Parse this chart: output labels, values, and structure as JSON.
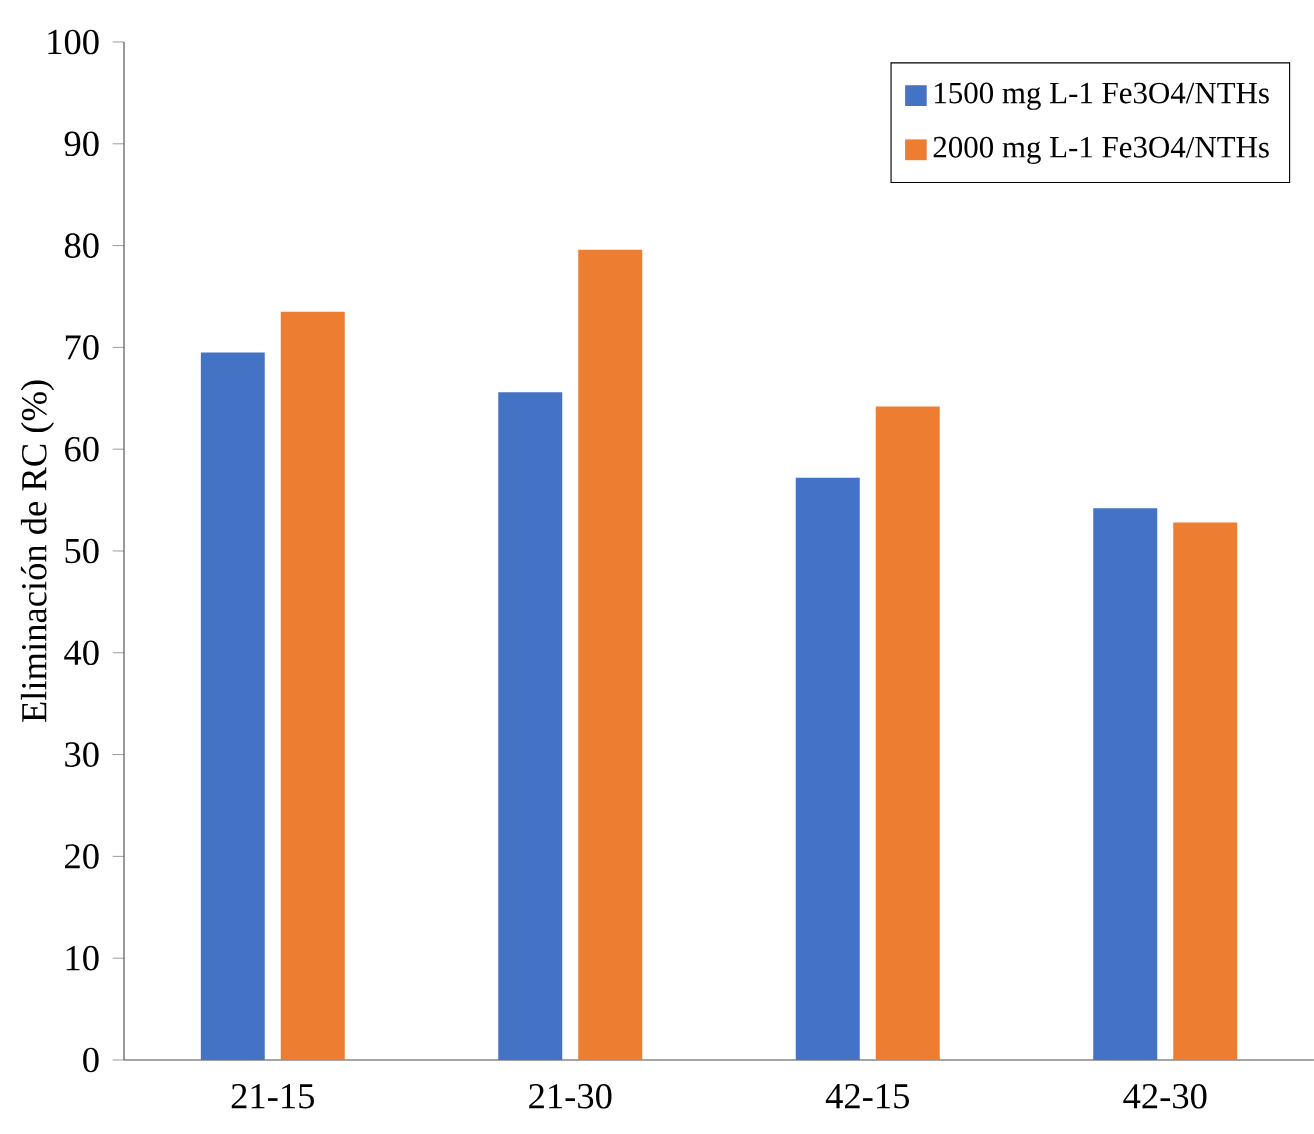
{
  "chart_data": {
    "type": "bar",
    "ylabel": "Eliminación de RC (%)",
    "categories": [
      "21-15",
      "21-30",
      "42-15",
      "42-30"
    ],
    "series": [
      {
        "name": "1500 mg L-1 Fe3O4/NTHs",
        "color": "#4472c4",
        "values": [
          69.5,
          65.6,
          57.2,
          54.2
        ]
      },
      {
        "name": "2000 mg L-1 Fe3O4/NTHs",
        "color": "#ed7d31",
        "values": [
          73.5,
          79.6,
          64.2,
          52.8
        ]
      }
    ],
    "ylim": [
      0,
      100
    ],
    "yticks": [
      0,
      10,
      20,
      30,
      40,
      50,
      60,
      70,
      80,
      90,
      100
    ],
    "grid": false,
    "legend": "top right"
  }
}
